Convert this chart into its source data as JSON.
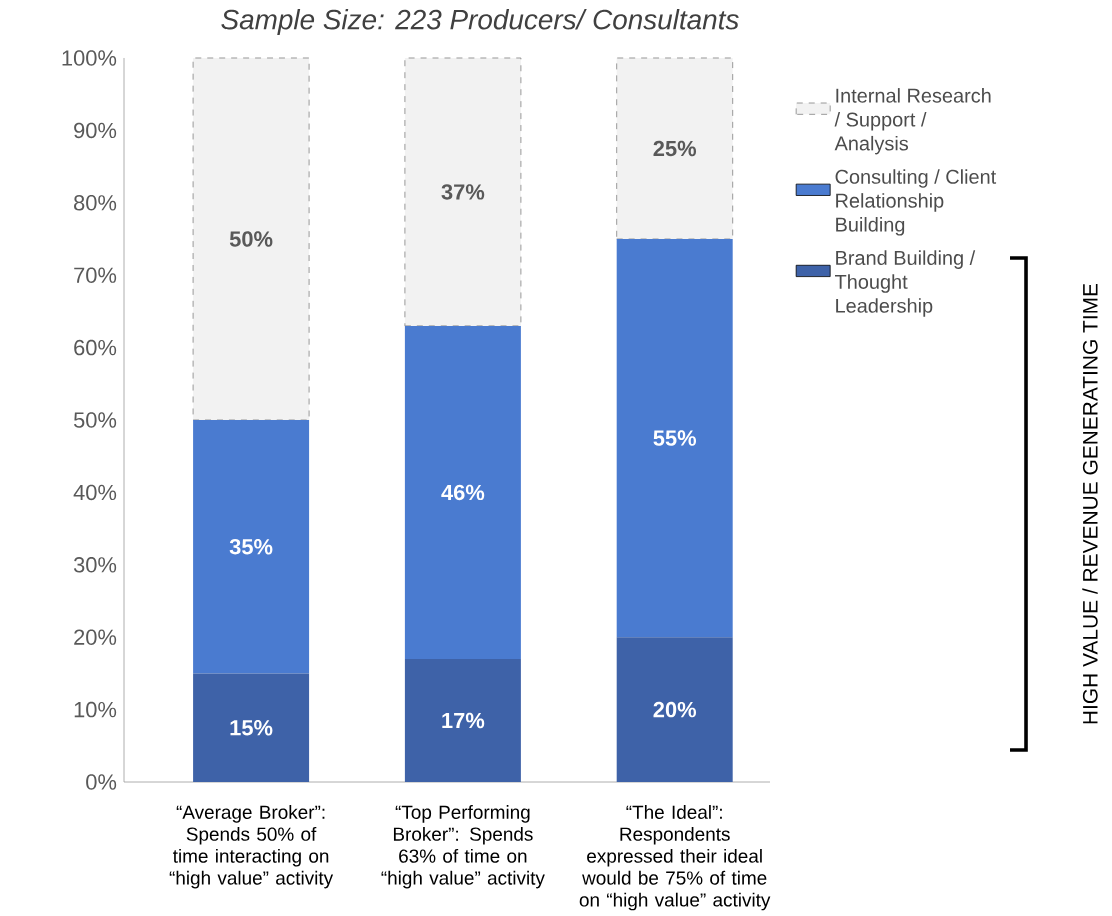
{
  "chart_data": {
    "type": "bar",
    "stacked": true,
    "title": "Sample Size: 223 Producers/ Consultants",
    "categories": [
      "“Average Broker”: Spends 50% of time interacting on “high value” activity",
      "“Top Performing Broker”: Spends 63% of time on “high value” activity",
      "“The Ideal”: Respondents expressed their ideal would be 75% of time on “high value” activity"
    ],
    "series": [
      {
        "name": "Brand Building / Thought Leadership",
        "color": "#3e62a8",
        "values": [
          15,
          17,
          20
        ],
        "value_labels": [
          "15%",
          "17%",
          "20%"
        ]
      },
      {
        "name": "Consulting / Client Relationship Building",
        "color": "#4a7bd0",
        "values": [
          35,
          46,
          55
        ],
        "value_labels": [
          "35%",
          "46%",
          "55%"
        ]
      },
      {
        "name": "Internal Research / Support / Analysis",
        "color": "#f2f2f2",
        "line_style": "dashed",
        "values": [
          50,
          37,
          25
        ],
        "value_labels": [
          "50%",
          "37%",
          "25%"
        ]
      }
    ],
    "ylim": [
      0,
      100
    ],
    "yticks": [
      {
        "value": 0,
        "label": "0%"
      },
      {
        "value": 10,
        "label": "10%"
      },
      {
        "value": 20,
        "label": "20%"
      },
      {
        "value": 30,
        "label": "30%"
      },
      {
        "value": 40,
        "label": "40%"
      },
      {
        "value": 50,
        "label": "50%"
      },
      {
        "value": 60,
        "label": "60%"
      },
      {
        "value": 70,
        "label": "70%"
      },
      {
        "value": 80,
        "label": "80%"
      },
      {
        "value": 90,
        "label": "90%"
      },
      {
        "value": 100,
        "label": "100%"
      }
    ],
    "legend": "right",
    "annotations": [
      "HIGH VALUE / REVENUE GENERATING TIME"
    ]
  }
}
